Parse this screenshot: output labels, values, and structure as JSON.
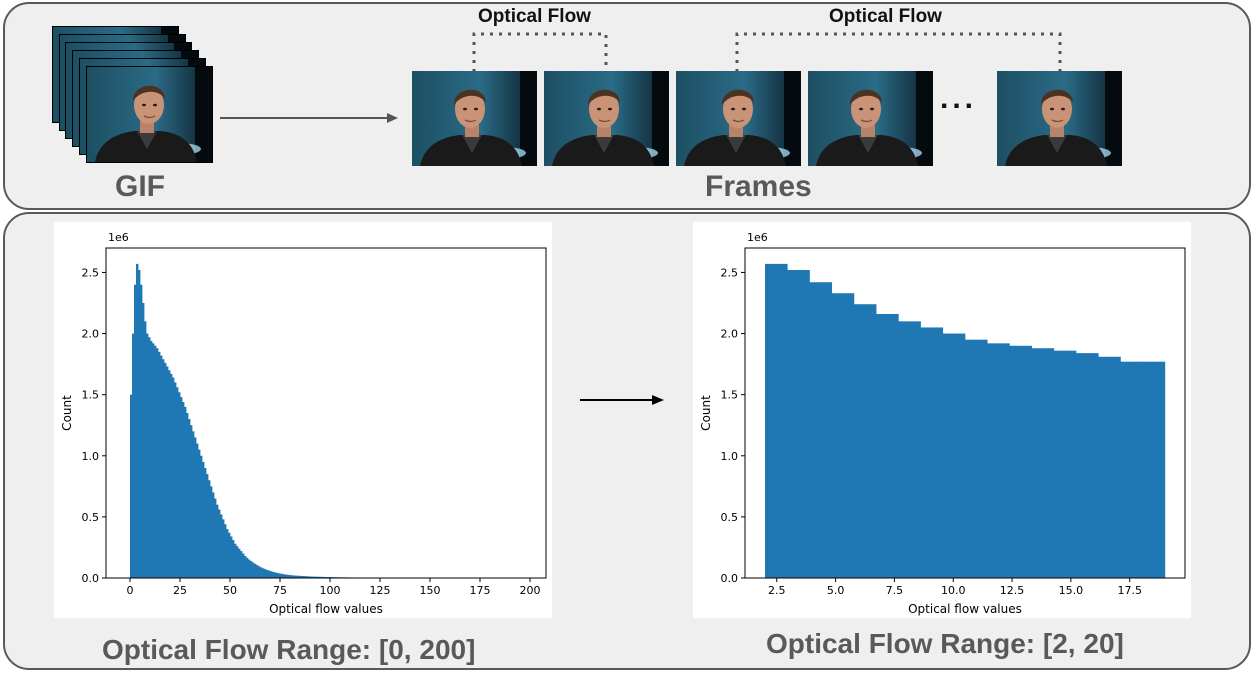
{
  "top": {
    "gif_label": "GIF",
    "frames_label": "Frames",
    "flow_label_1": "Optical Flow",
    "flow_label_2": "Optical Flow",
    "ellipsis": "..."
  },
  "bottom": {
    "left_range_label": "Optical Flow Range: [0, 200]",
    "right_range_label": "Optical Flow Range: [2, 20]"
  },
  "colors": {
    "bar": "#1f77b4",
    "panel_bg": "#efefef",
    "panel_border": "#595959",
    "label_gray": "#595959"
  },
  "chart_data": [
    {
      "type": "bar",
      "title": "",
      "xlabel": "Optical flow values",
      "ylabel": "Count",
      "y_offset_label": "1e6",
      "xlim": [
        -12,
        208
      ],
      "ylim": [
        0,
        2.7
      ],
      "xticks": [
        0,
        25,
        50,
        75,
        100,
        125,
        150,
        175,
        200
      ],
      "xtick_labels": [
        "0",
        "25",
        "50",
        "75",
        "100",
        "125",
        "150",
        "175",
        "200"
      ],
      "yticks": [
        0,
        0.5,
        1.0,
        1.5,
        2.0,
        2.5
      ],
      "ytick_labels": [
        "0.0",
        "0.5",
        "1.0",
        "1.5",
        "2.0",
        "2.5"
      ],
      "bin_start": 0,
      "bin_width": 1,
      "values": [
        1.5,
        2.0,
        2.4,
        2.57,
        2.52,
        2.4,
        2.25,
        2.1,
        2.0,
        1.97,
        1.94,
        1.92,
        1.9,
        1.88,
        1.85,
        1.82,
        1.79,
        1.76,
        1.73,
        1.7,
        1.67,
        1.64,
        1.6,
        1.56,
        1.52,
        1.48,
        1.44,
        1.4,
        1.35,
        1.3,
        1.25,
        1.2,
        1.15,
        1.1,
        1.05,
        1.0,
        0.95,
        0.9,
        0.85,
        0.8,
        0.75,
        0.7,
        0.65,
        0.6,
        0.56,
        0.52,
        0.48,
        0.44,
        0.4,
        0.37,
        0.34,
        0.31,
        0.28,
        0.26,
        0.24,
        0.22,
        0.2,
        0.18,
        0.165,
        0.15,
        0.138,
        0.126,
        0.115,
        0.105,
        0.095,
        0.087,
        0.079,
        0.072,
        0.066,
        0.06,
        0.055,
        0.05,
        0.046,
        0.042,
        0.038,
        0.035,
        0.032,
        0.029,
        0.027,
        0.025,
        0.023,
        0.021,
        0.02,
        0.019,
        0.018,
        0.017,
        0.016,
        0.015,
        0.014,
        0.013,
        0.012,
        0.0115,
        0.011,
        0.0105,
        0.01,
        0.0095,
        0.009,
        0.0085,
        0.008,
        0.0076,
        0.0072,
        0.0068,
        0.0065,
        0.0062,
        0.0059,
        0.0056,
        0.0053,
        0.005,
        0.0048,
        0.0046,
        0.0044,
        0.0042,
        0.004,
        0.0038,
        0.0036,
        0.0034,
        0.0033,
        0.0032,
        0.0031,
        0.003,
        0.0029,
        0.0028,
        0.0027,
        0.0026,
        0.0025,
        0.0024,
        0.0023,
        0.0022,
        0.0021,
        0.002,
        0.002,
        0.002,
        0.002,
        0.002,
        0.002,
        0.002,
        0.002,
        0.002,
        0.002,
        0.002,
        0.002,
        0.002,
        0.002,
        0.002,
        0.002,
        0.002,
        0.002,
        0.002,
        0.002,
        0.002,
        0.002,
        0.002,
        0.002,
        0.002,
        0.002,
        0.002,
        0.002,
        0.002,
        0.002,
        0.002,
        0.002,
        0.002,
        0.002,
        0.002,
        0.002,
        0.002,
        0.002,
        0.002,
        0.002,
        0.002,
        0.002,
        0.002,
        0.002,
        0.002,
        0.002,
        0.002,
        0.002,
        0.002,
        0.002,
        0.002,
        0.002,
        0.002,
        0.002,
        0.002,
        0.002,
        0.002,
        0.002,
        0.002,
        0.002,
        0.002,
        0.002,
        0.002,
        0.002,
        0.002,
        0.002,
        0.002,
        0.002,
        0.002,
        0.002,
        0.002,
        0.002,
        0.002,
        0.002,
        0.002,
        0.002,
        0.002
      ]
    },
    {
      "type": "bar",
      "title": "",
      "xlabel": "Optical flow values",
      "ylabel": "Count",
      "y_offset_label": "1e6",
      "xlim": [
        1.15,
        19.85
      ],
      "ylim": [
        0,
        2.7
      ],
      "xticks": [
        2.5,
        5.0,
        7.5,
        10.0,
        12.5,
        15.0,
        17.5
      ],
      "xtick_labels": [
        "2.5",
        "5.0",
        "7.5",
        "10.0",
        "12.5",
        "15.0",
        "17.5"
      ],
      "yticks": [
        0,
        0.5,
        1.0,
        1.5,
        2.0,
        2.5
      ],
      "ytick_labels": [
        "0.0",
        "0.5",
        "1.0",
        "1.5",
        "2.0",
        "2.5"
      ],
      "bin_start": 2,
      "bin_width": 0.944,
      "values": [
        2.57,
        2.52,
        2.42,
        2.33,
        2.24,
        2.16,
        2.1,
        2.05,
        2.0,
        1.95,
        1.92,
        1.9,
        1.88,
        1.86,
        1.84,
        1.81,
        1.77,
        1.77
      ]
    }
  ]
}
